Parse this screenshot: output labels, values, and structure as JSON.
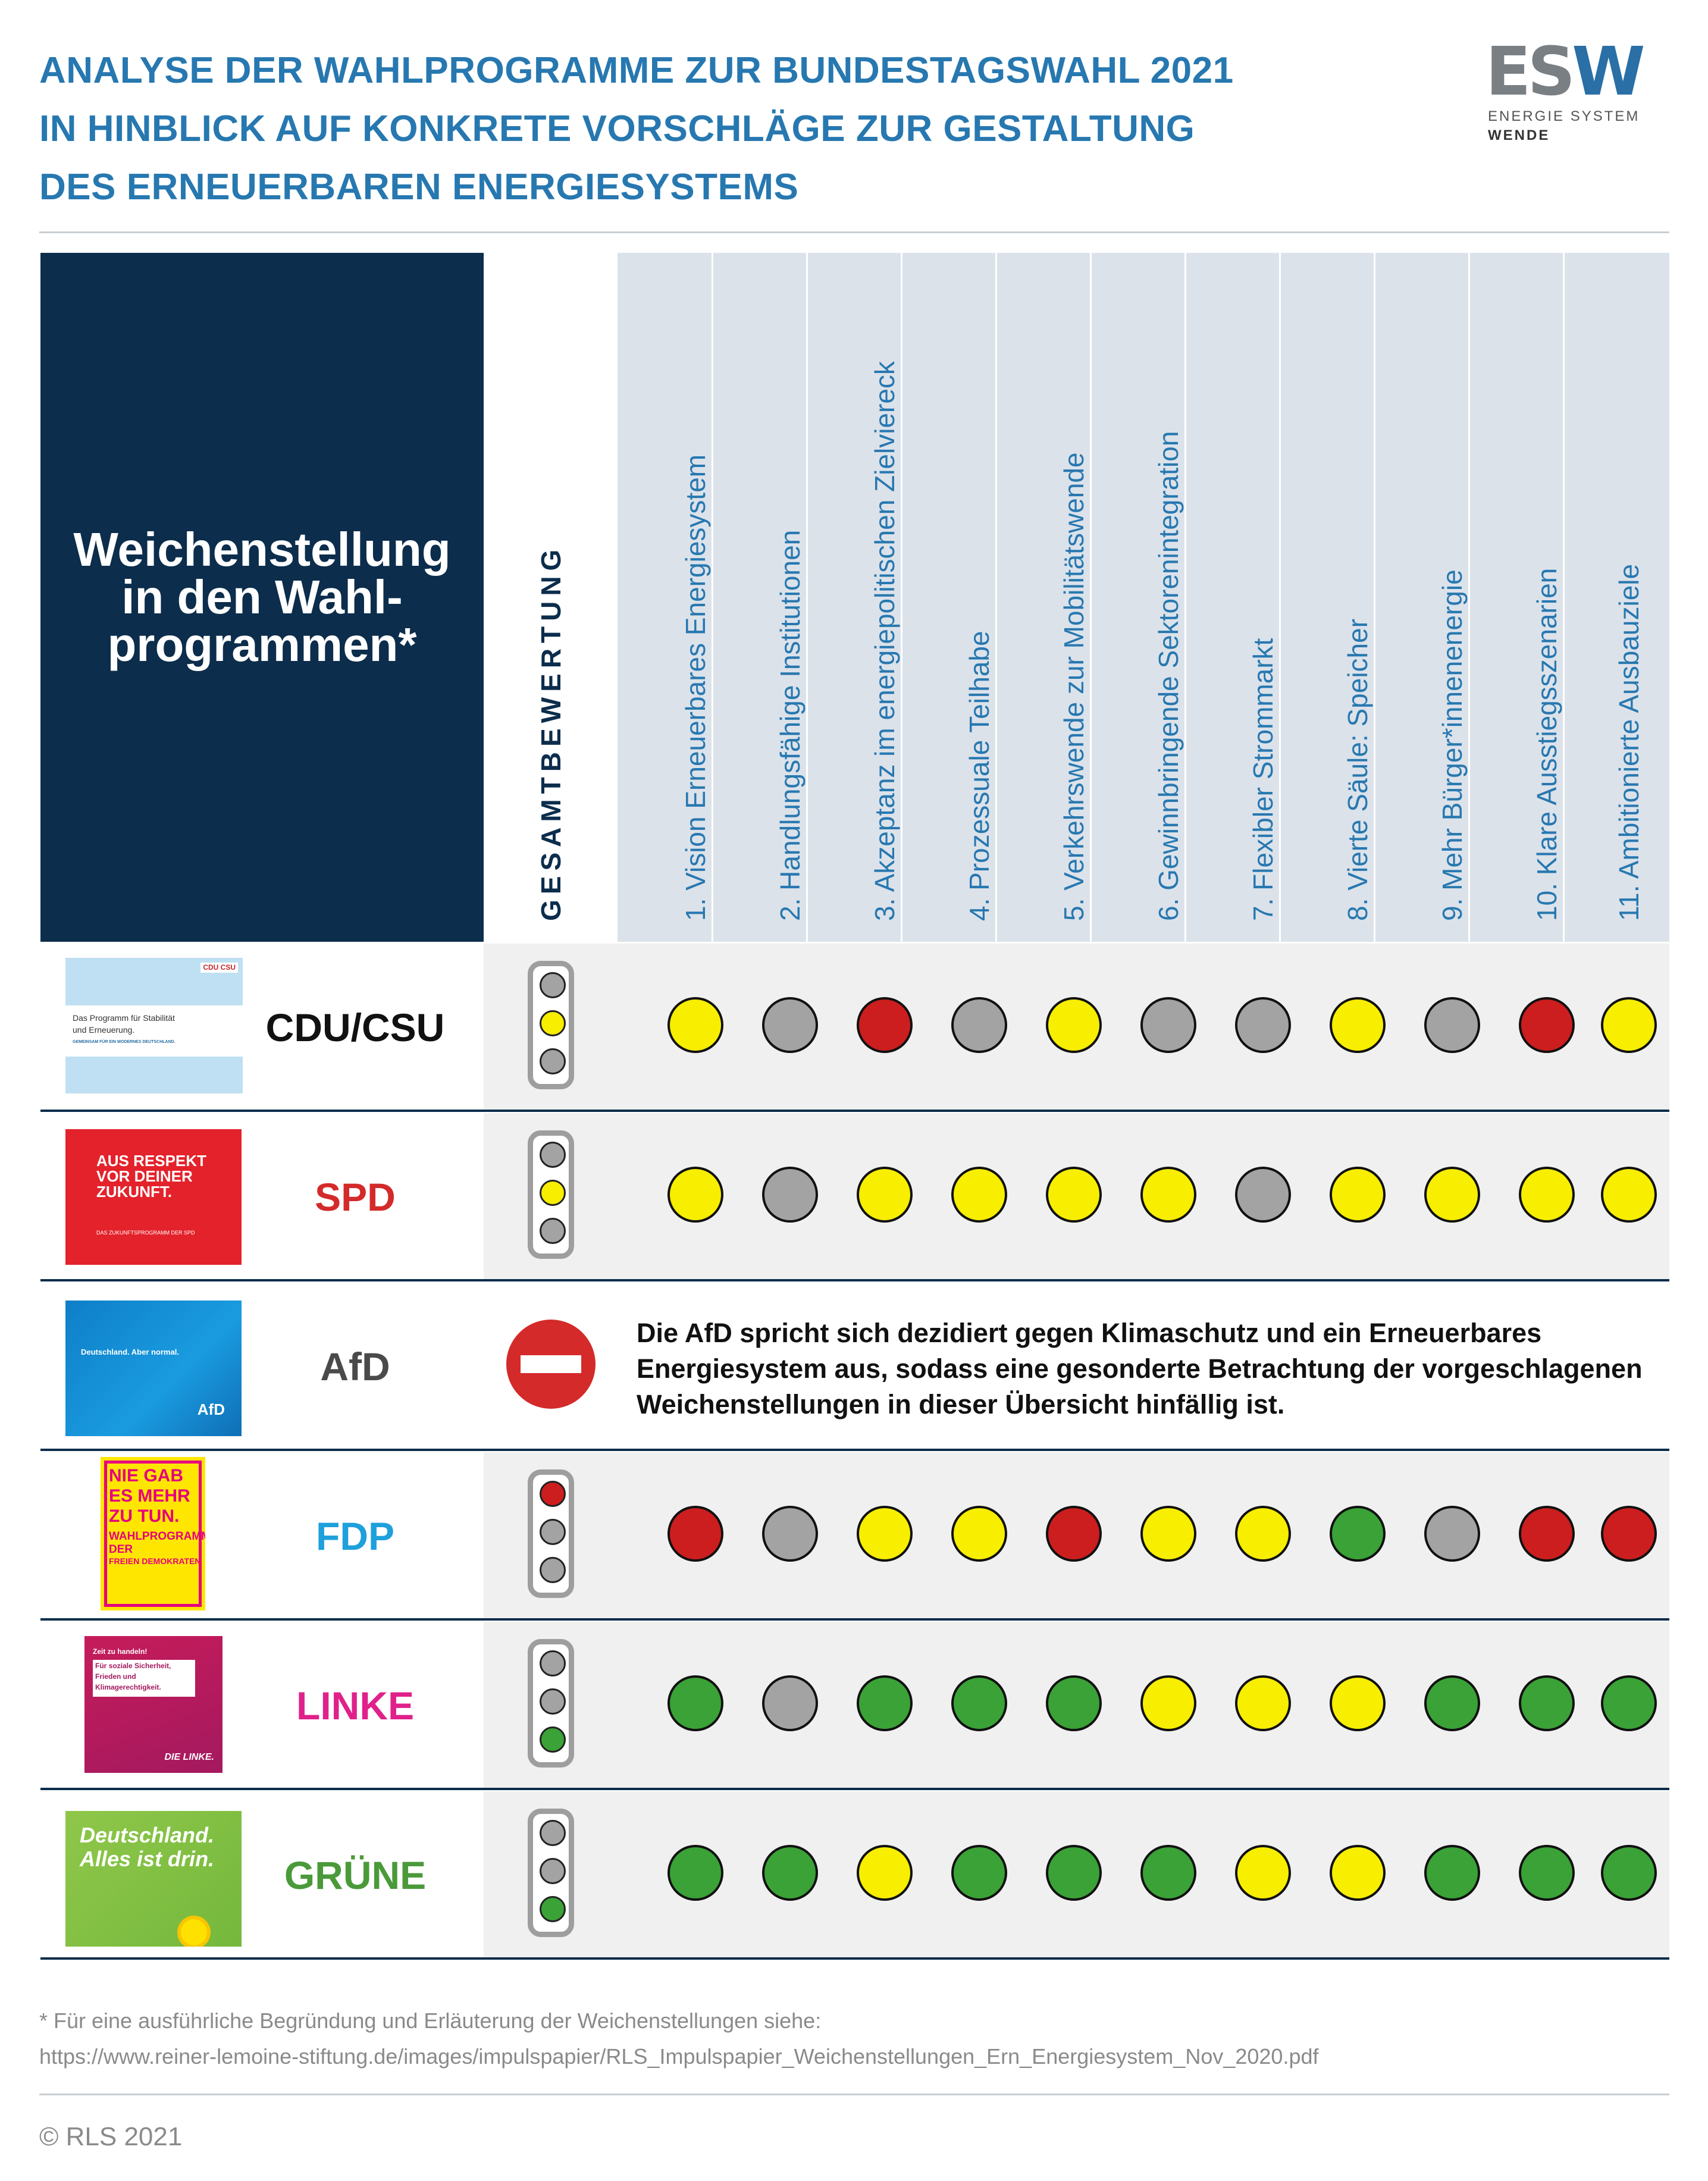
{
  "title_lines": [
    "ANALYSE DER WAHLPROGRAMME ZUR BUNDESTAGSWAHL 2021",
    "IN HINBLICK AUF KONKRETE VORSCHLÄGE ZUR GESTALTUNG",
    "DES ERNEUERBAREN ENERGIESYSTEMS"
  ],
  "logo": {
    "mark_es": "ES",
    "mark_w": "W",
    "line1": "ENERGIE SYSTEM",
    "line2": "WENDE"
  },
  "header_label": "Weichenstellung\nin den Wahl-\nprogrammen*",
  "gesamt_label": "GESAMTBEWERTUNG",
  "colors": {
    "red": "#cc1e1e",
    "yellow": "#f7ee00",
    "gray": "#a3a3a3",
    "green": "#3aa236",
    "off": "#a3a3a3",
    "navy": "#0c2d4c",
    "accent": "#2778b0"
  },
  "chart_data": {
    "type": "table",
    "columns": [
      "1. Vision Erneuerbares Energiesystem",
      "2. Handlungsfähige Institutionen",
      "3. Akzeptanz im energiepolitischen Zielviereck",
      "4. Prozessuale Teilhabe",
      "5. Verkehrswende zur Mobilitätswende",
      "6. Gewinnbringende Sektorenintegration",
      "7. Flexibler Strommarkt",
      "8. Vierte Säule: Speicher",
      "9. Mehr Bürger*innenenergie",
      "10. Klare Ausstiegsszenarien",
      "11. Ambitionierte Ausbauziele"
    ],
    "rows": [
      {
        "party": "CDU/CSU",
        "color": "#111111",
        "overall": "yellow",
        "ratings": [
          "yellow",
          "gray",
          "red",
          "gray",
          "yellow",
          "gray",
          "gray",
          "yellow",
          "gray",
          "red",
          "yellow"
        ]
      },
      {
        "party": "SPD",
        "color": "#d42a2a",
        "overall": "yellow",
        "ratings": [
          "yellow",
          "gray",
          "yellow",
          "yellow",
          "yellow",
          "yellow",
          "gray",
          "yellow",
          "yellow",
          "yellow",
          "yellow"
        ]
      },
      {
        "party": "AfD",
        "color": "#4a4a4a",
        "overall": "excluded",
        "note": "Die AfD spricht sich dezidiert gegen Klimaschutz und ein Erneuerbares Energiesystem aus, sodass eine gesonderte Betrachtung der vorgeschlagenen Weichenstellungen in dieser Übersicht hinfällig ist.",
        "ratings": []
      },
      {
        "party": "FDP",
        "color": "#1ea0dc",
        "overall": "red",
        "ratings": [
          "red",
          "gray",
          "yellow",
          "yellow",
          "red",
          "yellow",
          "yellow",
          "green",
          "gray",
          "red",
          "red"
        ]
      },
      {
        "party": "LINKE",
        "color": "#e0218a",
        "overall": "green",
        "ratings": [
          "green",
          "gray",
          "green",
          "green",
          "green",
          "yellow",
          "yellow",
          "yellow",
          "green",
          "green",
          "green"
        ]
      },
      {
        "party": "GRÜNE",
        "color": "#4a9a3a",
        "overall": "green",
        "ratings": [
          "green",
          "green",
          "yellow",
          "green",
          "green",
          "green",
          "yellow",
          "yellow",
          "green",
          "green",
          "green"
        ]
      }
    ]
  },
  "covers": {
    "cdu": {
      "tag": "CDU CSU",
      "line1": "Das Programm für Stabilität",
      "line2": "und Erneuerung.",
      "line3": "GEMEINSAM FÜR EIN MODERNES DEUTSCHLAND."
    },
    "spd": {
      "line1": "AUS RESPEKT",
      "line2": "VOR DEINER",
      "line3": "ZUKUNFT.",
      "line4": "DAS ZUKUNFTSPROGRAMM DER SPD"
    },
    "afd": {
      "line1": "Deutschland. Aber normal.",
      "brand": "AfD"
    },
    "fdp": {
      "line1": "NIE GAB",
      "line2": "ES MEHR",
      "line3": "ZU TUN.",
      "line4": "WAHLPROGRAMM",
      "line5": "DER",
      "line6": "FREIEN DEMOKRATEN"
    },
    "linke": {
      "line1": "Zeit zu handeln!",
      "line2": "Für soziale Sicherheit,",
      "line3": "Frieden und",
      "line4": "Klimagerechtigkeit.",
      "brand": "DIE LINKE."
    },
    "gruene": {
      "line1": "Deutschland.",
      "line2": "Alles ist drin."
    }
  },
  "footnote_line1": "* Für eine ausführliche Begründung und Erläuterung der Weichenstellungen siehe:",
  "footnote_line2": "https://www.reiner-lemoine-stiftung.de/images/impulspapier/RLS_Impulspapier_Weichenstellungen_Ern_Energiesystem_Nov_2020.pdf",
  "copyright": "© RLS 2021"
}
